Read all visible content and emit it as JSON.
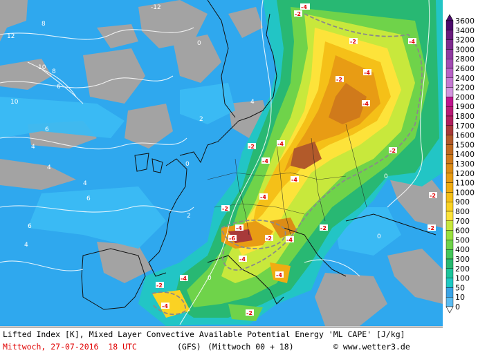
{
  "footer": {
    "title": "Lifted Index [K], Mixed Layer Convective Available Potential Energy 'ML CAPE' [J/kg]",
    "date": "Mittwoch, 27-07-2016  18 UTC",
    "model": "(GFS)",
    "run": "(Mittwoch 00 + 18)",
    "copyright": "© www.wetter3.de"
  },
  "legend": {
    "values": [
      "3600",
      "3400",
      "3200",
      "3000",
      "2800",
      "2600",
      "2400",
      "2200",
      "2000",
      "1900",
      "1800",
      "1700",
      "1600",
      "1500",
      "1400",
      "1300",
      "1200",
      "1100",
      "1000",
      "900",
      "800",
      "700",
      "600",
      "500",
      "400",
      "300",
      "200",
      "100",
      "50",
      "10",
      "0"
    ],
    "colors": [
      "#4b0a6b",
      "#6a1b7c",
      "#7e2a8e",
      "#8f3aa0",
      "#a34cb3",
      "#b862c6",
      "#c57ad2",
      "#d395df",
      "#c0158e",
      "#b91c76",
      "#b0205e",
      "#a83a3a",
      "#b25a2a",
      "#c06a20",
      "#d07a1b",
      "#dc8c16",
      "#e89c14",
      "#f0ac12",
      "#f5c018",
      "#fad223",
      "#fde33a",
      "#c8e83c",
      "#9ae13f",
      "#6fd34a",
      "#44c65a",
      "#27b86e",
      "#1cc59b",
      "#1ec9c3",
      "#3aa4e6",
      "#5bbcf2",
      "#ffffff"
    ]
  },
  "map_labels": [
    {
      "t": "-12"
    },
    {
      "t": "8"
    },
    {
      "t": "6"
    },
    {
      "t": "4"
    },
    {
      "t": "2"
    },
    {
      "t": "0"
    },
    {
      "t": "-2"
    },
    {
      "t": "-4"
    },
    {
      "t": "10"
    },
    {
      "t": "12"
    }
  ]
}
